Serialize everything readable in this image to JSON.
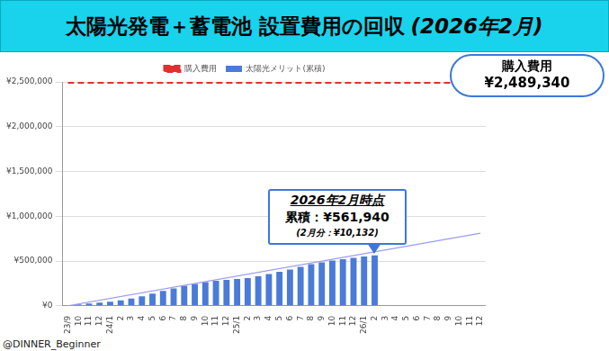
{
  "credit": "@DINNER_Beginner",
  "chart_data": {
    "type": "bar",
    "title": "太陽光発電＋蓄電池 設置費用の回収 (2026年2月)",
    "categories": [
      "23/9",
      "10",
      "11",
      "12",
      "24/1",
      "2",
      "3",
      "4",
      "5",
      "6",
      "7",
      "8",
      "9",
      "10",
      "11",
      "12",
      "25/1",
      "2",
      "3",
      "4",
      "5",
      "6",
      "7",
      "8",
      "9",
      "10",
      "11",
      "12",
      "26/1",
      "2",
      "3",
      "4",
      "5",
      "6",
      "7",
      "8",
      "9",
      "10",
      "11",
      "12"
    ],
    "series": [
      {
        "name": "太陽光メリット(累積)",
        "type": "bar",
        "color": "#4a7bd9",
        "values": [
          5000,
          15000,
          25000,
          35000,
          45000,
          60000,
          80000,
          105000,
          135000,
          165000,
          195000,
          225000,
          245000,
          265000,
          280000,
          290000,
          300000,
          310000,
          330000,
          355000,
          380000,
          405000,
          435000,
          465000,
          485000,
          505000,
          520000,
          535000,
          551808,
          561940,
          null,
          null,
          null,
          null,
          null,
          null,
          null,
          null,
          null,
          null
        ]
      },
      {
        "name": "購入費用",
        "type": "line",
        "color": "#e03030",
        "line_style": "dashed",
        "values": [
          2489340,
          2489340,
          2489340,
          2489340,
          2489340,
          2489340,
          2489340,
          2489340,
          2489340,
          2489340,
          2489340,
          2489340,
          2489340,
          2489340,
          2489340,
          2489340,
          2489340,
          2489340,
          2489340,
          2489340,
          2489340,
          2489340,
          2489340,
          2489340,
          2489340,
          2489340,
          2489340,
          2489340,
          2489340,
          2489340,
          2489340,
          2489340,
          2489340,
          2489340,
          2489340,
          2489340,
          2489340,
          2489340,
          2489340,
          2489340
        ]
      },
      {
        "type": "line",
        "color": "#9b9bf0",
        "line_style": "solid",
        "values": [
          0,
          null,
          null,
          null,
          null,
          null,
          null,
          null,
          null,
          null,
          null,
          null,
          null,
          null,
          null,
          null,
          null,
          null,
          null,
          null,
          null,
          null,
          null,
          null,
          null,
          null,
          null,
          null,
          null,
          null,
          null,
          null,
          null,
          null,
          null,
          null,
          null,
          null,
          null,
          810000
        ]
      }
    ],
    "ylim": [
      0,
      2500000
    ],
    "yticks": [
      {
        "value": 0,
        "label": "¥0"
      },
      {
        "value": 500000,
        "label": "¥500,000"
      },
      {
        "value": 1000000,
        "label": "¥1,000,000"
      },
      {
        "value": 1500000,
        "label": "¥1,500,000"
      },
      {
        "value": 2000000,
        "label": "¥2,000,000"
      },
      {
        "value": 2500000,
        "label": "¥2,500,000"
      }
    ],
    "grid": true,
    "legend": "top",
    "callout": [
      "2026年2月時点",
      "累積：¥561,940",
      "(2月分：¥10,132)"
    ],
    "cloud_note": [
      "購入費用",
      "¥2,489,340"
    ]
  }
}
